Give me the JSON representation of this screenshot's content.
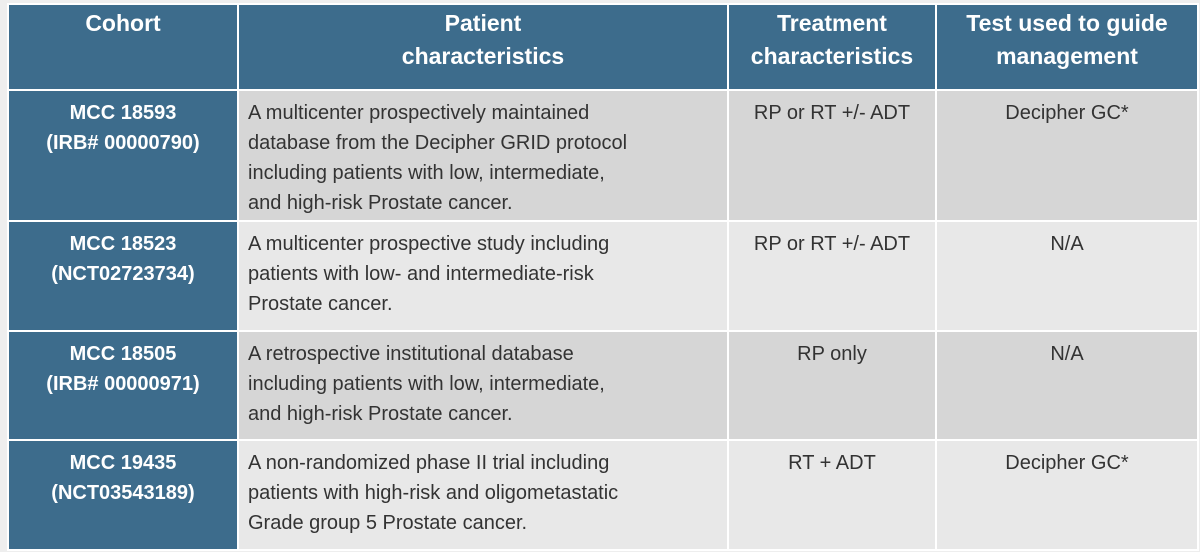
{
  "table": {
    "header": [
      [
        "Cohort"
      ],
      [
        "Patient",
        "characteristics"
      ],
      [
        "Treatment",
        "characteristics"
      ],
      [
        "Test used to guide",
        "management"
      ]
    ],
    "rows": [
      [
        [
          "MCC 18593",
          "(IRB# 00000790)"
        ],
        [
          "A multicenter prospectively maintained",
          "database from the Decipher GRID protocol",
          "including patients with low, intermediate,",
          "and high-risk Prostate cancer."
        ],
        [
          "RP or RT +/- ADT"
        ],
        [
          "Decipher GC*"
        ]
      ],
      [
        [
          "MCC 18523",
          "(NCT02723734)"
        ],
        [
          "A multicenter prospective study including",
          "patients with low- and intermediate-risk",
          "Prostate cancer."
        ],
        [
          "RP or RT +/- ADT"
        ],
        [
          "N/A"
        ]
      ],
      [
        [
          "MCC 18505",
          "(IRB# 00000971)"
        ],
        [
          "A retrospective institutional database",
          "including patients with low, intermediate,",
          "and high-risk Prostate cancer."
        ],
        [
          "RP only"
        ],
        [
          "N/A"
        ]
      ],
      [
        [
          "MCC 19435",
          "(NCT03543189)"
        ],
        [
          "A non-randomized phase II trial including",
          "patients with high-risk and oligometastatic",
          "Grade group 5 Prostate cancer."
        ],
        [
          "RT + ADT"
        ],
        [
          "Decipher GC*"
        ]
      ]
    ]
  }
}
